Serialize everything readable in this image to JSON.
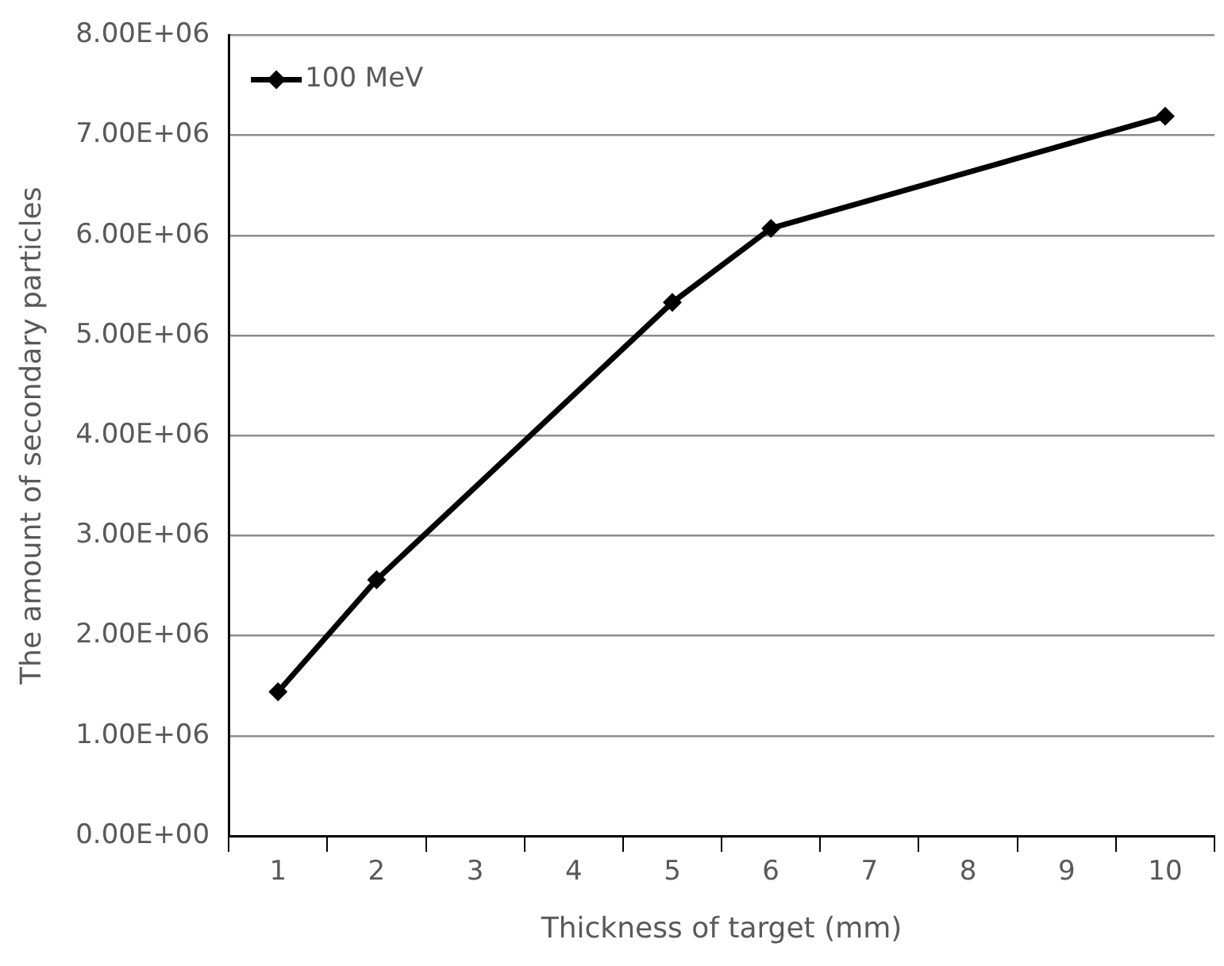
{
  "chart_data": {
    "type": "line",
    "xlabel": "Thickness of target (mm)",
    "ylabel": "The amount of secondary particles",
    "categories": [
      "1",
      "2",
      "3",
      "4",
      "5",
      "6",
      "7",
      "8",
      "9",
      "10"
    ],
    "series": [
      {
        "name": "100 MeV",
        "color": "#000000",
        "values": [
          1440000,
          2560000,
          null,
          null,
          5330000,
          6070000,
          null,
          null,
          null,
          7190000
        ]
      }
    ],
    "ylim": [
      0,
      8000000
    ],
    "yticks": [
      {
        "value": 0,
        "label": "0.00E+00"
      },
      {
        "value": 1000000,
        "label": "1.00E+06"
      },
      {
        "value": 2000000,
        "label": "2.00E+06"
      },
      {
        "value": 3000000,
        "label": "3.00E+06"
      },
      {
        "value": 4000000,
        "label": "4.00E+06"
      },
      {
        "value": 5000000,
        "label": "5.00E+06"
      },
      {
        "value": 6000000,
        "label": "6.00E+06"
      },
      {
        "value": 7000000,
        "label": "7.00E+06"
      },
      {
        "value": 8000000,
        "label": "8.00E+06"
      }
    ],
    "grid": "y",
    "legend": "top left",
    "marker": "diamond",
    "line_style": "solid"
  }
}
